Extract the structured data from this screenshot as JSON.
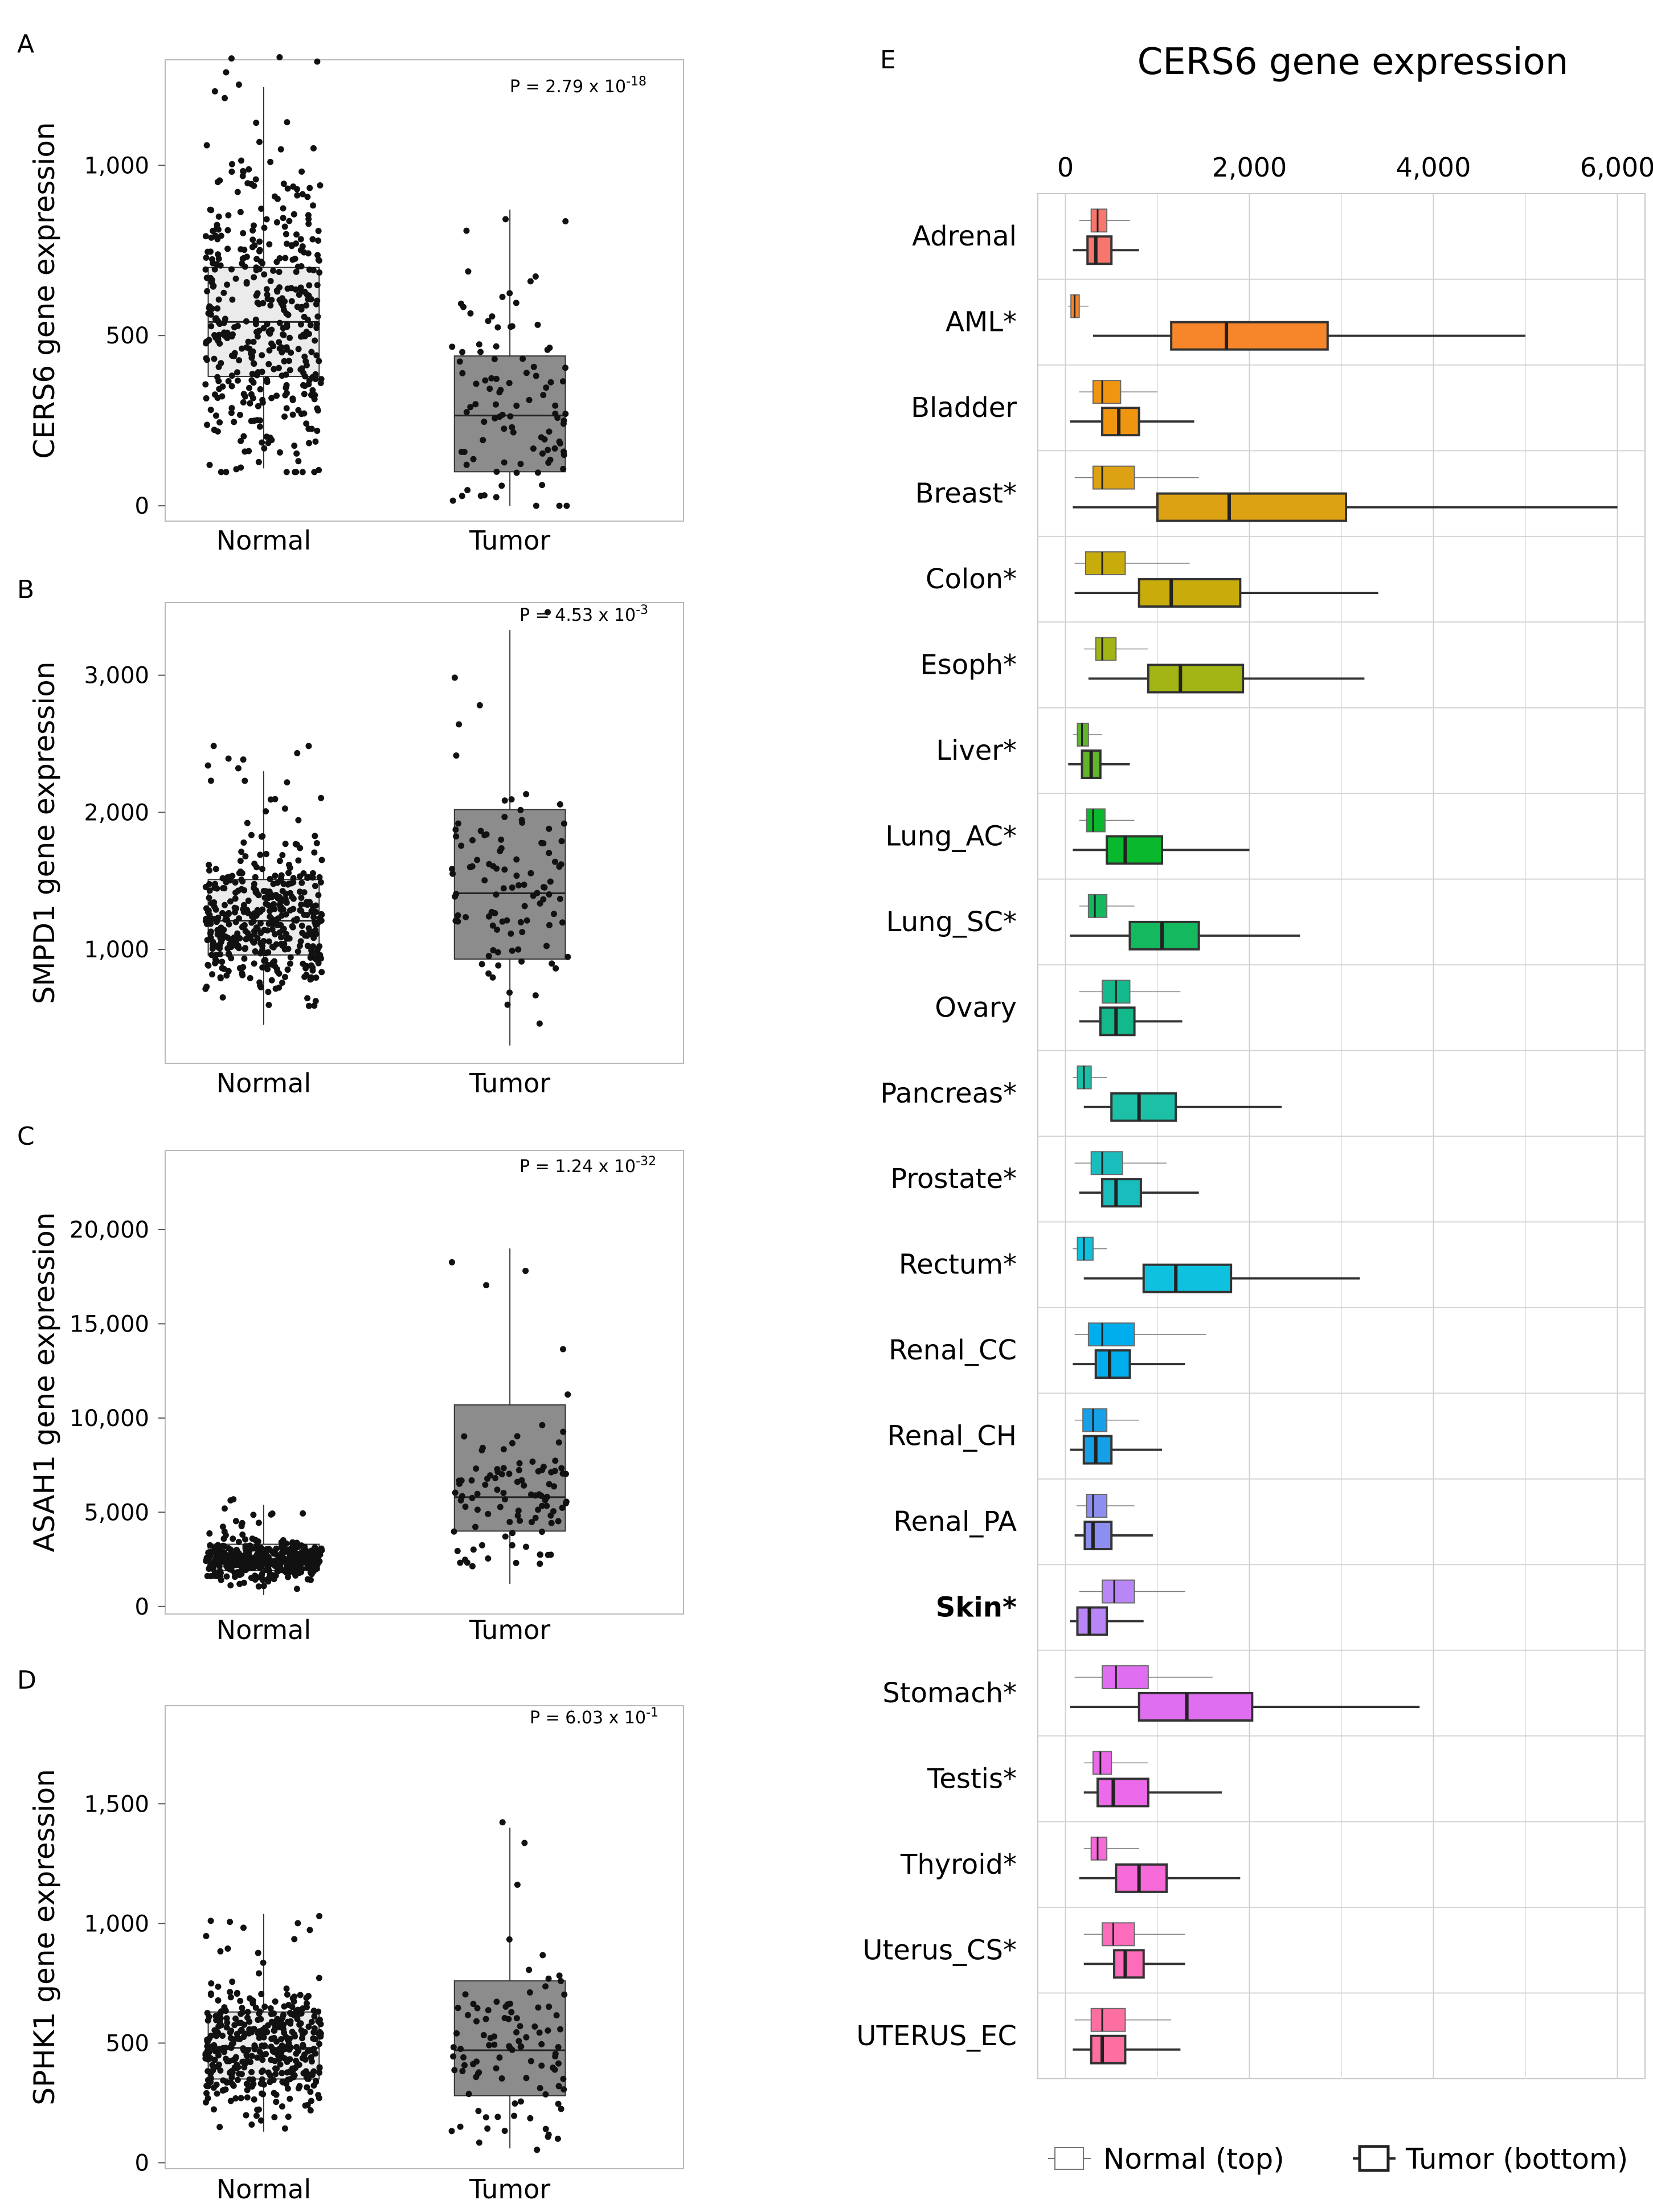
{
  "chart_data": [
    {
      "panel": "A",
      "type": "box",
      "ylabel": "CERS6 gene expression",
      "categories": [
        "Normal",
        "Tumor"
      ],
      "yticks": [
        0,
        500,
        1000
      ],
      "ytick_labels": [
        "0",
        "500",
        "1,000"
      ],
      "ylim": [
        -45,
        1310
      ],
      "p_value": {
        "prefix": "P = 2.79 x 10",
        "exp": "-18"
      },
      "boxes": [
        {
          "name": "Normal",
          "min": 110,
          "q1": 380,
          "median": 540,
          "q3": 700,
          "max": 1230,
          "n": 420,
          "spread": 400,
          "fill": "#ebebeb"
        },
        {
          "name": "Tumor",
          "min": 0,
          "q1": 100,
          "median": 265,
          "q3": 440,
          "max": 870,
          "n": 100,
          "spread": 300,
          "fill": "#8c8c8c"
        }
      ]
    },
    {
      "panel": "B",
      "type": "box",
      "ylabel": "SMPD1 gene expression",
      "categories": [
        "Normal",
        "Tumor"
      ],
      "yticks": [
        1000,
        2000,
        3000
      ],
      "ytick_labels": [
        "1,000",
        "2,000",
        "3,000"
      ],
      "ylim": [
        170,
        3530
      ],
      "p_value": {
        "prefix": "P = 4.53 x 10",
        "exp": "-3"
      },
      "boxes": [
        {
          "name": "Normal",
          "min": 450,
          "q1": 960,
          "median": 1210,
          "q3": 1510,
          "max": 2300,
          "n": 420,
          "spread": 450,
          "fill": "#ebebeb"
        },
        {
          "name": "Tumor",
          "min": 300,
          "q1": 930,
          "median": 1410,
          "q3": 2020,
          "max": 3330,
          "n": 100,
          "spread": 700,
          "fill": "#8c8c8c"
        }
      ]
    },
    {
      "panel": "C",
      "type": "box",
      "ylabel": "ASAH1 gene expression",
      "categories": [
        "Normal",
        "Tumor"
      ],
      "yticks": [
        0,
        5000,
        10000,
        15000,
        20000
      ],
      "ytick_labels": [
        "0",
        "5,000",
        "10,000",
        "15,000",
        "20,000"
      ],
      "ylim": [
        -400,
        24200
      ],
      "p_value": {
        "prefix": "P = 1.24 x 10",
        "exp": "-32"
      },
      "boxes": [
        {
          "name": "Normal",
          "min": 600,
          "q1": 1900,
          "median": 2500,
          "q3": 3300,
          "max": 5400,
          "n": 420,
          "spread": 900,
          "fill": "#ebebeb"
        },
        {
          "name": "Tumor",
          "min": 1200,
          "q1": 4000,
          "median": 5800,
          "q3": 10700,
          "max": 19000,
          "n": 100,
          "spread": 3500,
          "fill": "#8c8c8c"
        }
      ]
    },
    {
      "panel": "D",
      "type": "box",
      "ylabel": "SPHK1 gene expression",
      "categories": [
        "Normal",
        "Tumor"
      ],
      "yticks": [
        0,
        500,
        1000,
        1500
      ],
      "ytick_labels": [
        "0",
        "500",
        "1,000",
        "1,500"
      ],
      "ylim": [
        -25,
        1910
      ],
      "p_value": {
        "prefix": "P = 6.03 x 10",
        "exp": "-1"
      },
      "boxes": [
        {
          "name": "Normal",
          "min": 130,
          "q1": 350,
          "median": 480,
          "q3": 630,
          "max": 1040,
          "n": 420,
          "spread": 230,
          "fill": "#ebebeb"
        },
        {
          "name": "Tumor",
          "min": 60,
          "q1": 280,
          "median": 470,
          "q3": 760,
          "max": 1400,
          "n": 100,
          "spread": 350,
          "fill": "#8c8c8c"
        }
      ]
    },
    {
      "panel": "E",
      "type": "horizontal-box",
      "title": "CERS6 gene expression",
      "xticks": [
        0,
        2000,
        4000,
        6000
      ],
      "xtick_labels": [
        "0",
        "2,000",
        "4,000",
        "6,000"
      ],
      "xlim": [
        -300,
        6300
      ],
      "legend": {
        "normal": "Normal (top)",
        "tumor": "Tumor (bottom)"
      },
      "highlight": "Skin*",
      "highlight_color": "#e8201e",
      "rows": [
        {
          "label": "Adrenal",
          "color": "#f8766d",
          "normal": [
            150,
            280,
            350,
            450,
            700
          ],
          "tumor": [
            80,
            240,
            330,
            500,
            800
          ]
        },
        {
          "label": "AML*",
          "color": "#f7862a",
          "normal": [
            30,
            60,
            100,
            150,
            250
          ],
          "tumor": [
            300,
            1150,
            1750,
            2850,
            5000
          ]
        },
        {
          "label": "Bladder",
          "color": "#ef9510",
          "normal": [
            150,
            300,
            400,
            600,
            1000
          ],
          "tumor": [
            50,
            400,
            580,
            800,
            1400
          ]
        },
        {
          "label": "Breast*",
          "color": "#dca213",
          "normal": [
            100,
            300,
            400,
            750,
            1450
          ],
          "tumor": [
            80,
            1000,
            1780,
            3050,
            6000
          ]
        },
        {
          "label": "Colon*",
          "color": "#c8ac0b",
          "normal": [
            100,
            220,
            400,
            650,
            1350
          ],
          "tumor": [
            100,
            800,
            1150,
            1900,
            3400
          ]
        },
        {
          "label": "Esoph*",
          "color": "#a2b514",
          "normal": [
            200,
            330,
            400,
            550,
            900
          ],
          "tumor": [
            250,
            900,
            1250,
            1930,
            3250
          ]
        },
        {
          "label": "Liver*",
          "color": "#60b52b",
          "normal": [
            80,
            130,
            180,
            250,
            400
          ],
          "tumor": [
            30,
            180,
            280,
            380,
            700
          ]
        },
        {
          "label": "Lung_AC*",
          "color": "#09b82c",
          "normal": [
            150,
            230,
            300,
            430,
            750
          ],
          "tumor": [
            80,
            450,
            650,
            1050,
            2000
          ]
        },
        {
          "label": "Lung_SC*",
          "color": "#13b85f",
          "normal": [
            150,
            250,
            320,
            450,
            750
          ],
          "tumor": [
            50,
            700,
            1050,
            1450,
            2550
          ]
        },
        {
          "label": "Ovary",
          "color": "#13b98a",
          "normal": [
            150,
            400,
            550,
            700,
            1250
          ],
          "tumor": [
            150,
            380,
            550,
            750,
            1270
          ]
        },
        {
          "label": "Pancreas*",
          "color": "#1bc0a7",
          "normal": [
            80,
            130,
            200,
            280,
            450
          ],
          "tumor": [
            200,
            500,
            800,
            1200,
            2350
          ]
        },
        {
          "label": "Prostate*",
          "color": "#19bdbe",
          "normal": [
            100,
            280,
            400,
            620,
            1100
          ],
          "tumor": [
            150,
            400,
            550,
            820,
            1450
          ]
        },
        {
          "label": "Rectum*",
          "color": "#0ec2df",
          "normal": [
            80,
            130,
            200,
            300,
            450
          ],
          "tumor": [
            200,
            850,
            1200,
            1800,
            3200
          ]
        },
        {
          "label": "Renal_CC",
          "color": "#00aeed",
          "normal": [
            100,
            250,
            400,
            750,
            1530
          ],
          "tumor": [
            80,
            330,
            480,
            700,
            1300
          ]
        },
        {
          "label": "Renal_CH",
          "color": "#15a0e8",
          "normal": [
            100,
            190,
            300,
            450,
            800
          ],
          "tumor": [
            50,
            200,
            330,
            500,
            1050
          ]
        },
        {
          "label": "Renal_PA",
          "color": "#8d8ff0",
          "normal": [
            120,
            230,
            300,
            450,
            750
          ],
          "tumor": [
            100,
            210,
            300,
            500,
            950
          ]
        },
        {
          "label": "Skin*",
          "color": "#b886f6",
          "normal": [
            150,
            400,
            530,
            750,
            1300
          ],
          "tumor": [
            50,
            130,
            260,
            450,
            850
          ]
        },
        {
          "label": "Stomach*",
          "color": "#df6ff0",
          "normal": [
            100,
            400,
            550,
            900,
            1600
          ],
          "tumor": [
            50,
            800,
            1320,
            2030,
            3850
          ]
        },
        {
          "label": "Testis*",
          "color": "#ec69ea",
          "normal": [
            200,
            300,
            380,
            500,
            900
          ],
          "tumor": [
            200,
            350,
            520,
            900,
            1700
          ]
        },
        {
          "label": "Thyroid*",
          "color": "#f569d8",
          "normal": [
            200,
            280,
            350,
            450,
            800
          ],
          "tumor": [
            150,
            550,
            800,
            1100,
            1900
          ]
        },
        {
          "label": "Uterus_CS*",
          "color": "#fc6cba",
          "normal": [
            200,
            400,
            520,
            750,
            1300
          ],
          "tumor": [
            200,
            530,
            650,
            850,
            1300
          ]
        },
        {
          "label": "UTERUS_EC",
          "color": "#fc6fa0",
          "normal": [
            100,
            280,
            400,
            650,
            1150
          ],
          "tumor": [
            80,
            280,
            400,
            650,
            1250
          ]
        }
      ]
    }
  ]
}
